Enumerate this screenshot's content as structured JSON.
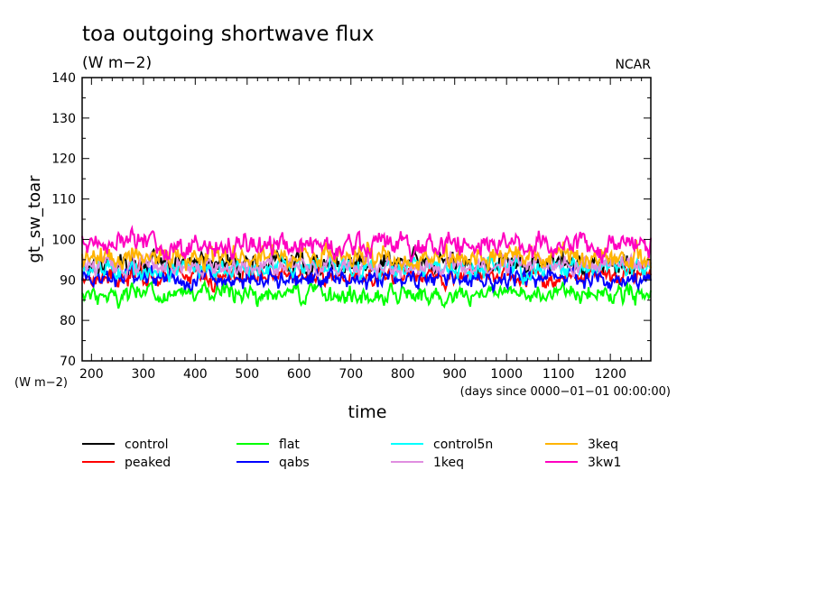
{
  "chart_data": {
    "type": "line",
    "title": "toa outgoing shortwave flux",
    "subtitle": "(W m−2)",
    "credit": "NCAR",
    "ylabel": "gt_sw_toar",
    "yunits": "(W m−2)",
    "xlabel": "time",
    "xunits": "(days since 0000−01−01 00:00:00)",
    "xlim": [
      182,
      1278
    ],
    "ylim": [
      70,
      140
    ],
    "xticks": [
      200,
      300,
      400,
      500,
      600,
      700,
      800,
      900,
      1000,
      1100,
      1200
    ],
    "yticks": [
      70,
      80,
      90,
      100,
      110,
      120,
      130,
      140
    ],
    "grid": false,
    "legend_position": "bottom",
    "series": [
      {
        "name": "control",
        "color": "#000000",
        "mean": 94,
        "amplitude": 1.9
      },
      {
        "name": "peaked",
        "color": "#ff0000",
        "mean": 91,
        "amplitude": 1.6
      },
      {
        "name": "flat",
        "color": "#00ff00",
        "mean": 86.5,
        "amplitude": 1.6
      },
      {
        "name": "qabs",
        "color": "#0000ff",
        "mean": 90.5,
        "amplitude": 1.7
      },
      {
        "name": "control5n",
        "color": "#00ffff",
        "mean": 93,
        "amplitude": 1.7
      },
      {
        "name": "1keq",
        "color": "#e08ee0",
        "mean": 93.5,
        "amplitude": 1.7
      },
      {
        "name": "3keq",
        "color": "#ffb400",
        "mean": 95.5,
        "amplitude": 2.0
      },
      {
        "name": "3kw1",
        "color": "#ff00c0",
        "mean": 98.5,
        "amplitude": 2.0
      }
    ]
  }
}
